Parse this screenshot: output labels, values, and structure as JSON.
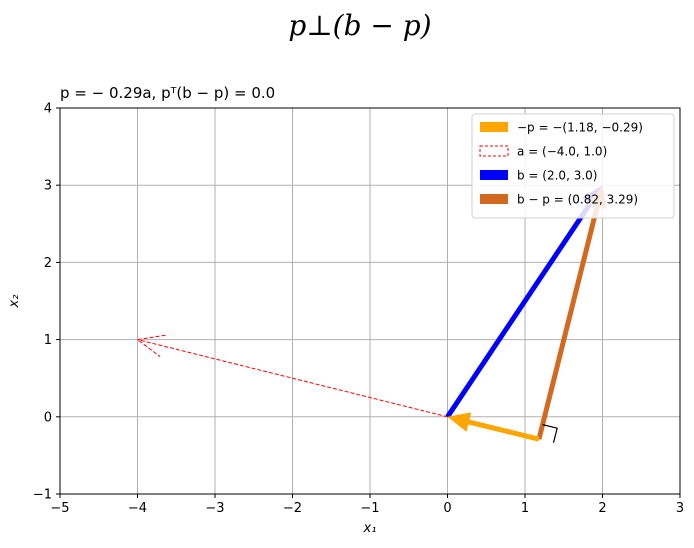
{
  "figure": {
    "suptitle": "p⊥(b − p)",
    "axes_title": "p = − 0.29a, pᵀ(b − p) = 0.0"
  },
  "chart_data": {
    "type": "vector-plot",
    "xlabel": "x₁",
    "ylabel": "x₂",
    "xlim": [
      -5,
      3
    ],
    "ylim": [
      -1,
      4
    ],
    "xticks": [
      -5,
      -4,
      -3,
      -2,
      -1,
      0,
      1,
      2,
      3
    ],
    "yticks": [
      -1,
      0,
      1,
      2,
      3,
      4
    ],
    "grid": true,
    "legend_position": "top-right",
    "vectors": [
      {
        "name": "−p = −(1.18, −0.29)",
        "from": [
          1.18,
          -0.29
        ],
        "to": [
          0,
          0
        ],
        "color": "#ffa500",
        "style": "solid-thick"
      },
      {
        "name": "a = (−4.0, 1.0)",
        "from": [
          0,
          0
        ],
        "to": [
          -4.0,
          1.0
        ],
        "color": "#ff0000",
        "style": "dashed-thin"
      },
      {
        "name": "b = (2.0, 3.0)",
        "from": [
          0,
          0
        ],
        "to": [
          2.0,
          3.0
        ],
        "color": "#0000ff",
        "style": "solid-thick"
      },
      {
        "name": "b − p = (0.82, 3.29)",
        "from": [
          1.18,
          -0.29
        ],
        "to": [
          2.0,
          3.0
        ],
        "color": "#d2691e",
        "style": "solid-thick"
      }
    ],
    "right_angle_marker": {
      "at": [
        1.18,
        -0.29
      ],
      "color": "#000000"
    }
  }
}
